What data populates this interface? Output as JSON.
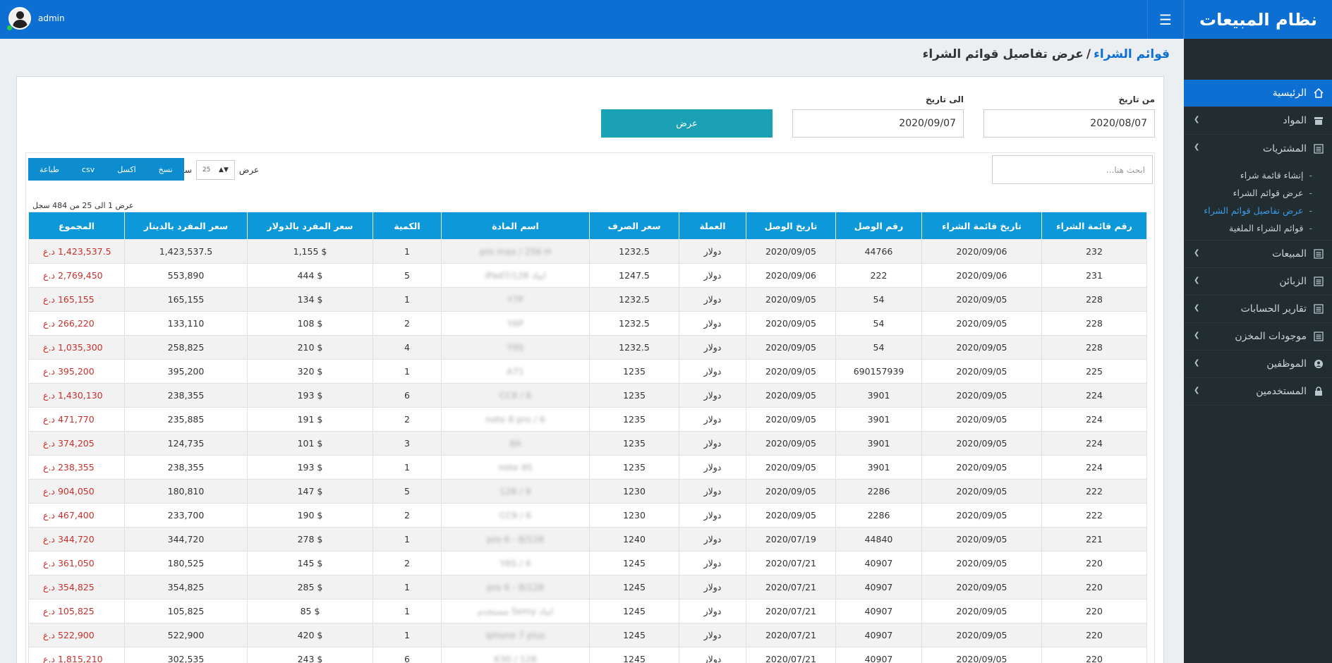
{
  "app": {
    "title": "نظام المبيعات",
    "user": "admin"
  },
  "sidebar": {
    "items": [
      {
        "label": "الرئيسية",
        "icon": "home-icon"
      },
      {
        "label": "المواد",
        "icon": "archive-icon"
      },
      {
        "label": "المشتريات",
        "icon": "list-icon"
      },
      {
        "label": "المبيعات",
        "icon": "list-icon"
      },
      {
        "label": "الزبائن",
        "icon": "list-icon"
      },
      {
        "label": "تقارير الحسابات",
        "icon": "list-icon"
      },
      {
        "label": "موجودات المخزن",
        "icon": "list-icon"
      },
      {
        "label": "الموظفين",
        "icon": "user-circle-icon"
      },
      {
        "label": "المستخدمين",
        "icon": "lock-icon"
      }
    ],
    "purchases_sub": [
      {
        "label": "إنشاء قائمة شراء"
      },
      {
        "label": "عرض قوائم الشراء"
      },
      {
        "label": "عرض تفاصيل قوائم الشراء"
      },
      {
        "label": "قوائم الشراء الملغية"
      }
    ]
  },
  "breadcrumb": {
    "parent": "قوائم الشراء",
    "separator": "/",
    "current": "عرض تفاصيل قوائم الشراء"
  },
  "filters": {
    "from_label": "من تاريخ",
    "from_value": "2020/08/07",
    "to_label": "الى تاريخ",
    "to_value": "2020/09/07",
    "show_button": "عرض"
  },
  "table_controls": {
    "search_placeholder": "ابحث هنا...",
    "show_label": "عرض",
    "length_value": "25",
    "records_label": "سجل",
    "export_buttons": [
      "نسخ",
      "اكسل",
      "csv",
      "طباعة"
    ],
    "info": "عرض 1 الى 25 من 484 سجل"
  },
  "table": {
    "columns": [
      "رقم قائمة الشراء",
      "تاريخ قائمة الشراء",
      "رقم الوصل",
      "تاريخ الوصل",
      "العملة",
      "سعر الصرف",
      "اسم المادة",
      "الكمية",
      "سعر المفرد بالدولار",
      "سعر المفرد بالدينار",
      "المجموع"
    ],
    "rows": [
      [
        "232",
        "2020/09/06",
        "44766",
        "2020/09/05",
        "دولار",
        "1232.5",
        "pro max / 256 H",
        "1",
        "$ 1,155",
        "1,423,537.5",
        "1,423,537.5 د.ع"
      ],
      [
        "231",
        "2020/09/06",
        "222",
        "2020/09/06",
        "دولار",
        "1247.5",
        "ايباد iPad7/128",
        "5",
        "$ 444",
        "553,890",
        "2,769,450 د.ع"
      ],
      [
        "228",
        "2020/09/05",
        "54",
        "2020/09/05",
        "دولار",
        "1232.5",
        "Y7P",
        "1",
        "$ 134",
        "165,155",
        "165,155 د.ع"
      ],
      [
        "228",
        "2020/09/05",
        "54",
        "2020/09/05",
        "دولار",
        "1232.5",
        "Y6P",
        "2",
        "$ 108",
        "133,110",
        "266,220 د.ع"
      ],
      [
        "228",
        "2020/09/05",
        "54",
        "2020/09/05",
        "دولار",
        "1232.5",
        "Y9S",
        "4",
        "$ 210",
        "258,825",
        "1,035,300 د.ع"
      ],
      [
        "225",
        "2020/09/05",
        "690157939",
        "2020/09/05",
        "دولار",
        "1235",
        "A71",
        "1",
        "$ 320",
        "395,200",
        "395,200 د.ع"
      ],
      [
        "224",
        "2020/09/05",
        "3901",
        "2020/09/05",
        "دولار",
        "1235",
        "CC9 / 6",
        "6",
        "$ 193",
        "238,355",
        "1,430,130 د.ع"
      ],
      [
        "224",
        "2020/09/05",
        "3901",
        "2020/09/05",
        "دولار",
        "1235",
        "note 8 pro / 6",
        "2",
        "$ 191",
        "235,885",
        "471,770 د.ع"
      ],
      [
        "224",
        "2020/09/05",
        "3901",
        "2020/09/05",
        "دولار",
        "1235",
        "8A",
        "3",
        "$ 101",
        "124,735",
        "374,205 د.ع"
      ],
      [
        "224",
        "2020/09/05",
        "3901",
        "2020/09/05",
        "دولار",
        "1235",
        "note 9S",
        "1",
        "$ 193",
        "238,355",
        "238,355 د.ع"
      ],
      [
        "222",
        "2020/09/05",
        "2286",
        "2020/09/05",
        "دولار",
        "1230",
        "9 / 128",
        "5",
        "$ 147",
        "180,810",
        "904,050 د.ع"
      ],
      [
        "222",
        "2020/09/05",
        "2286",
        "2020/09/05",
        "دولار",
        "1230",
        "CC9 / 6",
        "2",
        "$ 190",
        "233,700",
        "467,400 د.ع"
      ],
      [
        "221",
        "2020/09/05",
        "44840",
        "2020/07/19",
        "دولار",
        "1240",
        "pro 6 - 8/128",
        "1",
        "$ 278",
        "344,720",
        "344,720 د.ع"
      ],
      [
        "220",
        "2020/09/05",
        "40907",
        "2020/07/21",
        "دولار",
        "1245",
        "Y6S / 4",
        "2",
        "$ 145",
        "180,525",
        "361,050 د.ع"
      ],
      [
        "220",
        "2020/09/05",
        "40907",
        "2020/07/21",
        "دولار",
        "1245",
        "pro 6 - 8/128",
        "1",
        "$ 285",
        "354,825",
        "354,825 د.ع"
      ],
      [
        "220",
        "2020/09/05",
        "40907",
        "2020/07/21",
        "دولار",
        "1245",
        "ايباد 5emy مستخدم",
        "1",
        "$ 85",
        "105,825",
        "105,825 د.ع"
      ],
      [
        "220",
        "2020/09/05",
        "40907",
        "2020/07/21",
        "دولار",
        "1245",
        "iphone 7 plus",
        "1",
        "$ 420",
        "522,900",
        "522,900 د.ع"
      ],
      [
        "220",
        "2020/09/05",
        "40907",
        "2020/07/21",
        "دولار",
        "1245",
        "K30 / 128",
        "6",
        "$ 243",
        "302,535",
        "1,815,210 د.ع"
      ]
    ]
  }
}
